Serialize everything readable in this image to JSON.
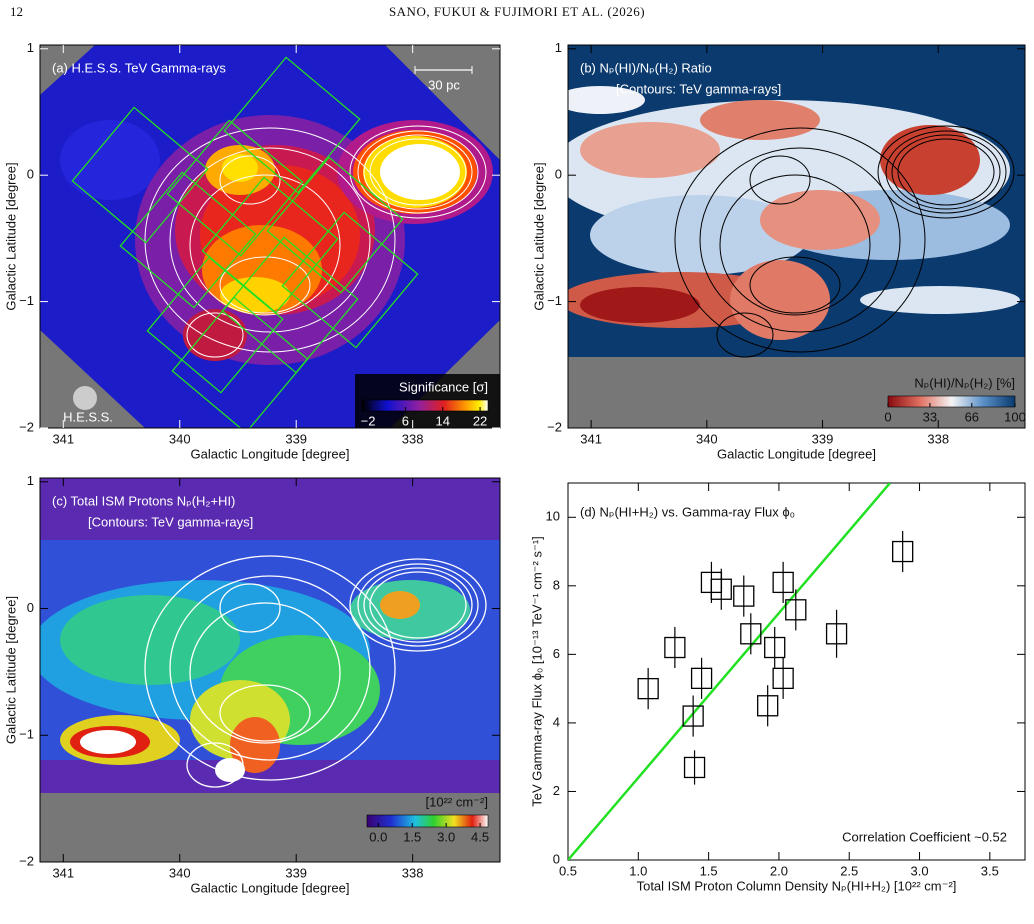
{
  "header": {
    "page_number": "12",
    "running_title": "SANO, FUKUI & FUJIMORI ET AL. (2026)"
  },
  "map_axes": {
    "xlabel": "Galactic Longitude [degree]",
    "ylabel": "Galactic Latitude [degree]",
    "xlim": [
      341.2,
      337.25
    ],
    "ylim": [
      -2.0,
      1.03
    ],
    "xticks": [
      341,
      340,
      339,
      338
    ],
    "yticks": [
      1,
      0,
      {
        "value": -1,
        "label": "−1"
      },
      {
        "value": -2,
        "label": "−2"
      }
    ]
  },
  "panels": [
    {
      "title": "(a) H.E.S.S. TeV Gamma-rays",
      "annotations": [
        "30 pc",
        "H.E.S.S."
      ],
      "colorbar": {
        "label": "Significance [σ]",
        "lim": [
          -3.3,
          23.7
        ],
        "ticks": [
          {
            "value": -2,
            "label": "−2"
          },
          6,
          14,
          22
        ]
      }
    },
    {
      "title": "(b) Nₚ(HI)/Nₚ(H₂) Ratio",
      "subtitle": "[Contours: TeV gamma-rays]",
      "colorbar": {
        "label": "Nₚ(HI)/Nₚ(H₂) [%]",
        "lim": [
          0,
          100
        ],
        "ticks": [
          0,
          33,
          66,
          100
        ]
      }
    },
    {
      "title": "(c) Total ISM Protons Nₚ(H₂+HI)",
      "subtitle": "[Contours: TeV gamma-rays]",
      "colorbar": {
        "label": "[10²² cm⁻²]",
        "lim": [
          -0.5,
          4.85
        ],
        "ticks": [
          {
            "value": 0,
            "label": "0.0"
          },
          1.5,
          {
            "value": 3,
            "label": "3.0"
          },
          4.5
        ]
      }
    }
  ],
  "chart_data": {
    "type": "scatter",
    "title": "(d) Nₚ(HI+H₂) vs. Gamma-ray Flux ϕ₀",
    "xlabel": "Total ISM Proton Column Density Nₚ(HI+H₂) [10²² cm⁻²]",
    "ylabel": "TeV Gamma-ray Flux ϕ₀ [10⁻¹³ TeV⁻¹ cm⁻² s⁻¹]",
    "x": [
      1.07,
      1.26,
      1.4,
      1.39,
      1.45,
      1.52,
      1.59,
      1.75,
      1.8,
      1.92,
      1.97,
      2.03,
      2.03,
      2.12,
      2.41,
      2.88
    ],
    "values": [
      5.0,
      6.2,
      2.7,
      4.2,
      5.3,
      8.1,
      7.9,
      7.7,
      6.6,
      4.5,
      6.2,
      8.1,
      5.3,
      7.3,
      6.6,
      9.0
    ],
    "errors": [
      0.6,
      0.6,
      0.5,
      0.6,
      0.6,
      0.6,
      0.6,
      0.6,
      0.6,
      0.6,
      0.6,
      0.6,
      0.6,
      0.6,
      0.7,
      0.6
    ],
    "color": "#000000",
    "fit_line": {
      "x": [
        0.5,
        2.79
      ],
      "values": [
        0,
        11
      ],
      "color": "#22e022"
    },
    "xlim": [
      0.5,
      3.75
    ],
    "ylim": [
      0,
      11
    ],
    "xticks": [
      0.5,
      {
        "value": 1,
        "label": "1.0"
      },
      1.5,
      {
        "value": 2,
        "label": "2.0"
      },
      2.5,
      {
        "value": 3,
        "label": "3.0"
      },
      3.5
    ],
    "yticks": [
      0,
      2,
      4,
      6,
      8,
      10
    ],
    "annotation": "Correlation Coefficient ~0.52"
  }
}
